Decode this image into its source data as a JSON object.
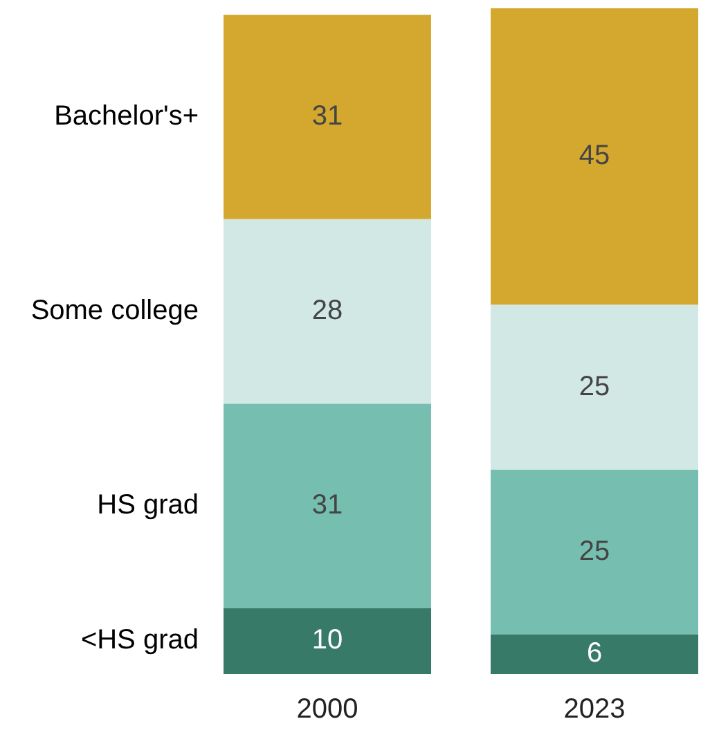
{
  "chart_data": {
    "type": "bar",
    "stacked": true,
    "categories": [
      "2000",
      "2023"
    ],
    "series": [
      {
        "name": "<HS grad",
        "color": "#387a68",
        "values": [
          10,
          6
        ]
      },
      {
        "name": "HS grad",
        "color": "#76bfb0",
        "values": [
          31,
          25
        ]
      },
      {
        "name": "Some college",
        "color": "#d2e8e4",
        "values": [
          28,
          25
        ]
      },
      {
        "name": "Bachelor's+",
        "color": "#d4a82f",
        "values": [
          31,
          45
        ]
      }
    ],
    "data_labels": true,
    "legend": false,
    "grid": false,
    "tick_labels": "x"
  }
}
